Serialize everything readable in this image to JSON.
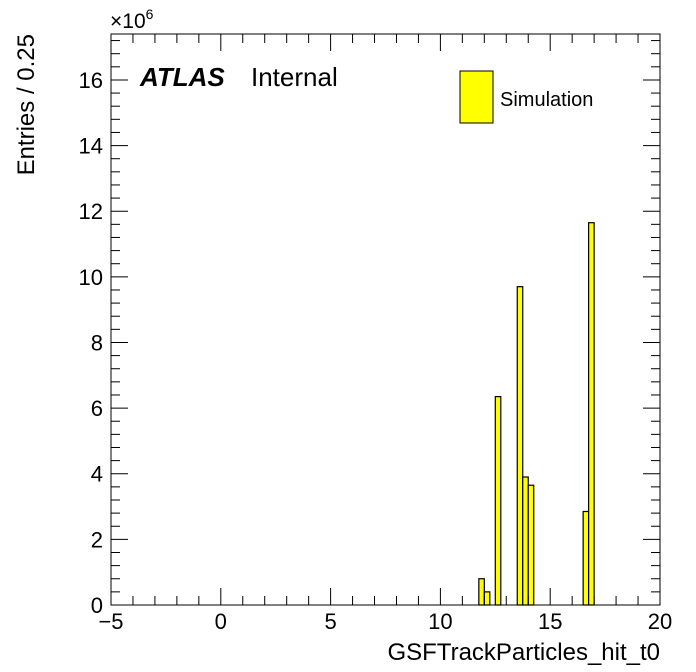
{
  "chart_data": {
    "type": "bar",
    "xlabel": "GSFTrackParticles_hit_t0",
    "ylabel": "Entries / 0.25",
    "xlim": [
      -5,
      20
    ],
    "ylim": [
      0,
      17.4
    ],
    "y_multiplier": "×10",
    "y_multiplier_exp": "6",
    "bin_width": 0.25,
    "x_ticks": [
      "−5",
      "0",
      "5",
      "10",
      "15",
      "20"
    ],
    "x_tick_values": [
      -5,
      0,
      5,
      10,
      15,
      20
    ],
    "y_ticks": [
      "0",
      "2",
      "4",
      "6",
      "8",
      "10",
      "12",
      "14",
      "16"
    ],
    "y_tick_values": [
      0,
      2,
      4,
      6,
      8,
      10,
      12,
      14,
      16
    ],
    "series": [
      {
        "name": "Simulation",
        "color": "#ffff00",
        "bins": [
          {
            "x": 11.75,
            "y": 0.8
          },
          {
            "x": 12.0,
            "y": 0.4
          },
          {
            "x": 12.5,
            "y": 6.35
          },
          {
            "x": 13.5,
            "y": 9.7
          },
          {
            "x": 13.75,
            "y": 3.9
          },
          {
            "x": 14.0,
            "y": 3.65
          },
          {
            "x": 16.5,
            "y": 2.85
          },
          {
            "x": 16.75,
            "y": 11.65
          }
        ]
      }
    ],
    "legend": {
      "position": "top-right",
      "label": "Simulation"
    },
    "annotation": {
      "atlas": "ATLAS",
      "status": "Internal"
    }
  }
}
